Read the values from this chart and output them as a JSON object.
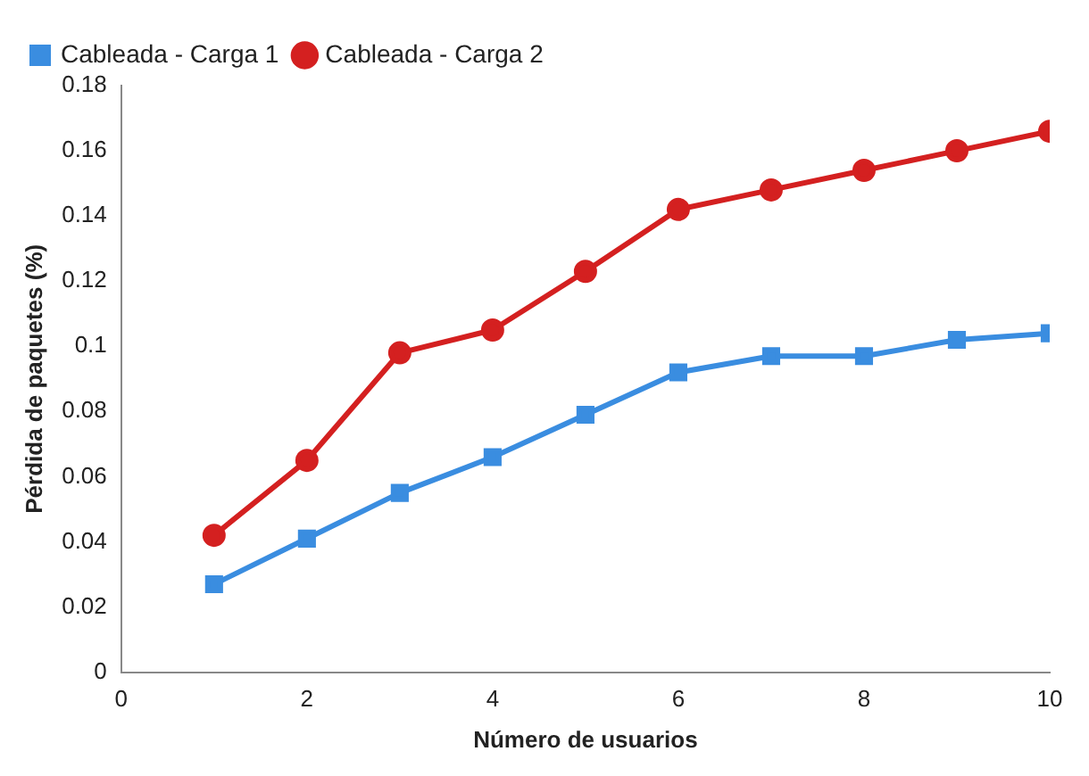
{
  "chart_data": {
    "type": "line",
    "xlabel": "Número de usuarios",
    "ylabel": "Pérdida de paquetes (%)",
    "x": [
      1,
      2,
      3,
      4,
      5,
      6,
      7,
      8,
      9,
      10
    ],
    "series": [
      {
        "name": "Cableada - Carga 1",
        "color": "#3a8de0",
        "marker": "square",
        "values": [
          0.027,
          0.041,
          0.055,
          0.066,
          0.079,
          0.092,
          0.097,
          0.097,
          0.102,
          0.104
        ]
      },
      {
        "name": "Cableada - Carga 2",
        "color": "#d42020",
        "marker": "circle",
        "values": [
          0.042,
          0.065,
          0.098,
          0.105,
          0.123,
          0.142,
          0.148,
          0.154,
          0.16,
          0.166
        ]
      }
    ],
    "xlim": [
      0,
      10
    ],
    "xticks": [
      0,
      2,
      4,
      6,
      8,
      10
    ],
    "ylim": [
      0,
      0.18
    ],
    "yticks": [
      0,
      0.02,
      0.04,
      0.06,
      0.08,
      0.1,
      0.12,
      0.14,
      0.16,
      0.18
    ],
    "grid": false,
    "legend": "top left",
    "line_style": "solid"
  }
}
